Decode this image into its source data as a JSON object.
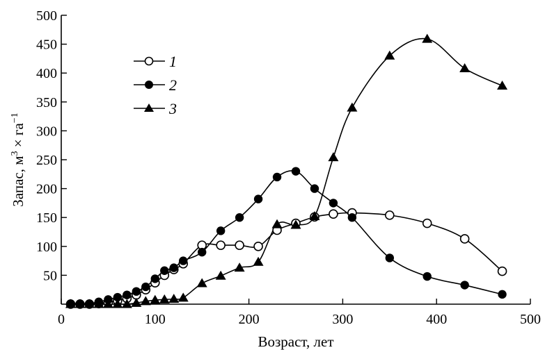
{
  "chart_data": {
    "type": "line",
    "title": "",
    "xlabel": "Возраст, лет",
    "ylabel_parts": {
      "base": "Запас, м",
      "sup1": "3",
      "mid": " × га",
      "sup2": "−1"
    },
    "xlim": [
      0,
      500
    ],
    "ylim": [
      0,
      500
    ],
    "x_ticks": [
      "0",
      "100",
      "200",
      "300",
      "400",
      "500"
    ],
    "y_ticks": [
      "50",
      "100",
      "150",
      "200",
      "250",
      "300",
      "350",
      "400",
      "450",
      "500"
    ],
    "grid": false,
    "legend_position": "top-left",
    "series": [
      {
        "name": "1",
        "marker": "open-circle",
        "x": [
          10,
          20,
          30,
          40,
          50,
          60,
          70,
          80,
          90,
          100,
          110,
          120,
          130,
          150,
          170,
          190,
          210,
          230,
          250,
          270,
          290,
          310,
          350,
          390,
          430,
          470
        ],
        "y": [
          0,
          0,
          0,
          1,
          3,
          6,
          10,
          16,
          25,
          37,
          50,
          60,
          70,
          102,
          102,
          102,
          100,
          128,
          140,
          151,
          156,
          158,
          154,
          140,
          113,
          57
        ]
      },
      {
        "name": "2",
        "marker": "filled-circle",
        "x": [
          10,
          20,
          30,
          40,
          50,
          60,
          70,
          80,
          90,
          100,
          110,
          120,
          130,
          150,
          170,
          190,
          210,
          230,
          250,
          270,
          290,
          310,
          350,
          390,
          430,
          470
        ],
        "y": [
          1,
          1,
          1,
          4,
          8,
          12,
          16,
          22,
          30,
          44,
          58,
          63,
          75,
          90,
          127,
          150,
          182,
          220,
          230,
          200,
          175,
          150,
          80,
          48,
          33,
          17
        ]
      },
      {
        "name": "3",
        "marker": "filled-triangle",
        "x": [
          10,
          20,
          30,
          40,
          50,
          60,
          70,
          80,
          90,
          100,
          110,
          120,
          130,
          150,
          170,
          190,
          210,
          230,
          250,
          270,
          290,
          310,
          350,
          390,
          430,
          470
        ],
        "y": [
          0,
          0,
          0,
          0,
          0,
          0,
          0,
          2,
          5,
          7,
          8,
          9,
          11,
          36,
          49,
          63,
          73,
          138,
          137,
          152,
          254,
          340,
          430,
          459,
          408,
          378
        ]
      }
    ]
  }
}
